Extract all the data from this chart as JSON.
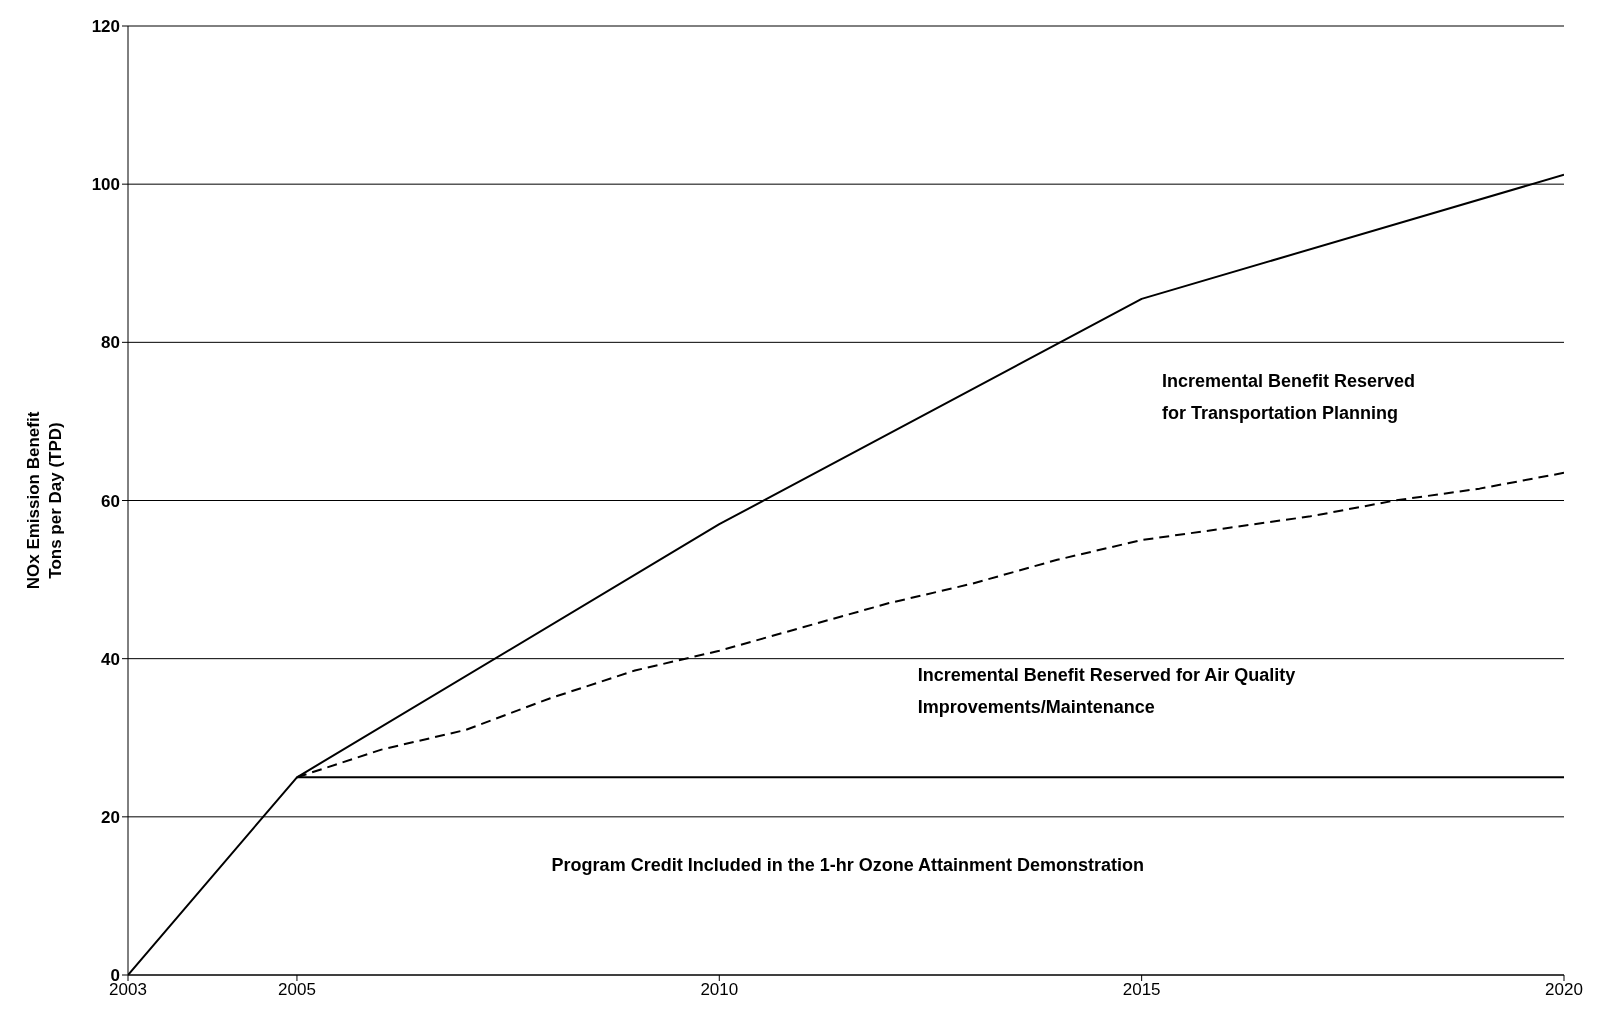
{
  "chart_data": {
    "type": "line",
    "ylabel": "NOx Emission Benefit\nTons per Day (TPD)",
    "xlim": [
      2003,
      2020
    ],
    "xticks": [
      2003,
      2005,
      2010,
      2015,
      2020
    ],
    "ylim": [
      0,
      120
    ],
    "yticks": [
      0,
      20,
      40,
      60,
      80,
      100,
      120
    ],
    "grid": "y",
    "legend": false,
    "marker": "none",
    "series": [
      {
        "color": "#000000",
        "line_style": "solid",
        "x": [
          2003,
          2005,
          2010,
          2015,
          2020
        ],
        "values": [
          0,
          25,
          57,
          85.5,
          101.2
        ]
      },
      {
        "color": "#000000",
        "line_style": "dashed",
        "x": [
          2005,
          2006,
          2007,
          2008,
          2009,
          2010,
          2011,
          2012,
          2013,
          2014,
          2015,
          2016,
          2017,
          2018,
          2019,
          2020
        ],
        "values": [
          25,
          28.5,
          31,
          35,
          38.5,
          41,
          44,
          47,
          49.5,
          52.5,
          55,
          56.5,
          58,
          60,
          61.5,
          63.5
        ]
      },
      {
        "color": "#000000",
        "line_style": "solid",
        "x": [
          2005,
          2020
        ],
        "values": [
          25,
          25
        ]
      }
    ],
    "annotations": [
      "Incremental Benefit Reserved for Transportation Planning",
      "Incremental Benefit Reserved for Air Quality Improvements/Maintenance",
      "Program Credit Included in the 1-hr Ozone Attainment Demonstration"
    ]
  }
}
